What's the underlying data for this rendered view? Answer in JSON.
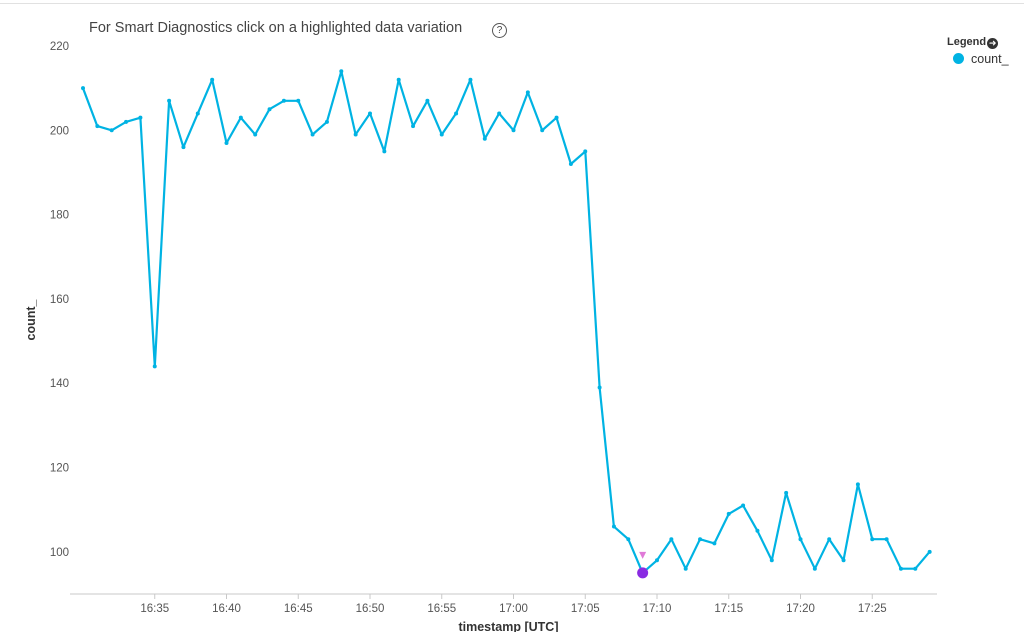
{
  "header": {
    "title": "For Smart Diagnostics click on a highlighted data variation",
    "help_icon": "?"
  },
  "legend": {
    "title": "Legend",
    "items": [
      {
        "label": "count_",
        "color": "#00b3e3"
      }
    ]
  },
  "colors": {
    "line": "#00b3e3",
    "anomaly": "#8a2be2",
    "anomaly_marker": "#e07ad8"
  },
  "chart_data": {
    "type": "line",
    "xlabel": "timestamp [UTC]",
    "ylabel": "count_",
    "ylim": [
      90,
      220
    ],
    "yticks": [
      100,
      120,
      140,
      160,
      180,
      200,
      220
    ],
    "xtick_labels": [
      "16:35",
      "16:40",
      "16:45",
      "16:50",
      "16:55",
      "17:00",
      "17:05",
      "17:10",
      "17:15",
      "17:20",
      "17:25"
    ],
    "x_start": "16:30",
    "x_step_minutes": 1,
    "grid": false,
    "legend_position": "top-right",
    "highlighted_point": {
      "x": "17:09",
      "y": 95
    },
    "series": [
      {
        "name": "count_",
        "values": [
          210,
          201,
          200,
          202,
          203,
          144,
          207,
          196,
          204,
          212,
          197,
          203,
          199,
          205,
          207,
          207,
          199,
          202,
          214,
          199,
          204,
          195,
          212,
          201,
          207,
          199,
          204,
          212,
          198,
          204,
          200,
          209,
          200,
          203,
          192,
          195,
          139,
          106,
          103,
          95,
          98,
          103,
          96,
          103,
          102,
          109,
          111,
          105,
          98,
          114,
          103,
          96,
          103,
          98,
          116,
          103,
          103,
          96,
          96,
          100
        ]
      }
    ]
  }
}
